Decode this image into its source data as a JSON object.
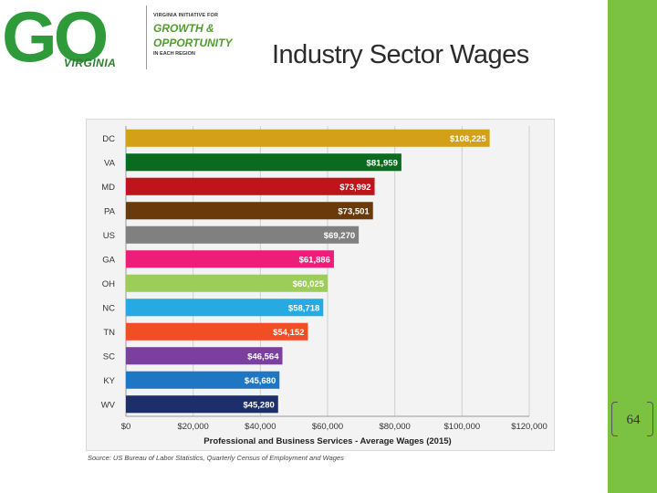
{
  "logo": {
    "mark": "GO",
    "state": "VIRGINIA",
    "line1": "VIRGINIA INITIATIVE FOR",
    "line2": "GROWTH &",
    "line3": "OPPORTUNITY",
    "line4": "IN EACH REGION"
  },
  "slide": {
    "title": "Industry Sector Wages",
    "source": "Source: US Bureau of Labor Statistics, Quarterly Census of Employment and Wages",
    "page_number": "64"
  },
  "chart_data": {
    "type": "bar",
    "orientation": "horizontal",
    "xlabel": "Professional and Business Services - Average Wages (2015)",
    "xlim": [
      0,
      120000
    ],
    "xticks": [
      0,
      20000,
      40000,
      60000,
      80000,
      100000,
      120000
    ],
    "xtick_labels": [
      "$0",
      "$20,000",
      "$40,000",
      "$60,000",
      "$80,000",
      "$100,000",
      "$120,000"
    ],
    "grid": true,
    "categories": [
      "DC",
      "VA",
      "MD",
      "PA",
      "US",
      "GA",
      "OH",
      "NC",
      "TN",
      "SC",
      "KY",
      "WV"
    ],
    "values": [
      108225,
      81959,
      73992,
      73501,
      69270,
      61886,
      60025,
      58718,
      54152,
      46564,
      45680,
      45280
    ],
    "labels": [
      "$108,225",
      "$81,959",
      "$73,992",
      "$73,501",
      "$69,270",
      "$61,886",
      "$60,025",
      "$58,718",
      "$54,152",
      "$46,564",
      "$45,680",
      "$45,280"
    ],
    "colors": [
      "#d4a017",
      "#0a6b1f",
      "#c0141c",
      "#6b3a0a",
      "#808080",
      "#ec1e79",
      "#9ccc5a",
      "#27aae1",
      "#f04e23",
      "#7b3fa0",
      "#1f77c4",
      "#1c2f6b"
    ]
  }
}
